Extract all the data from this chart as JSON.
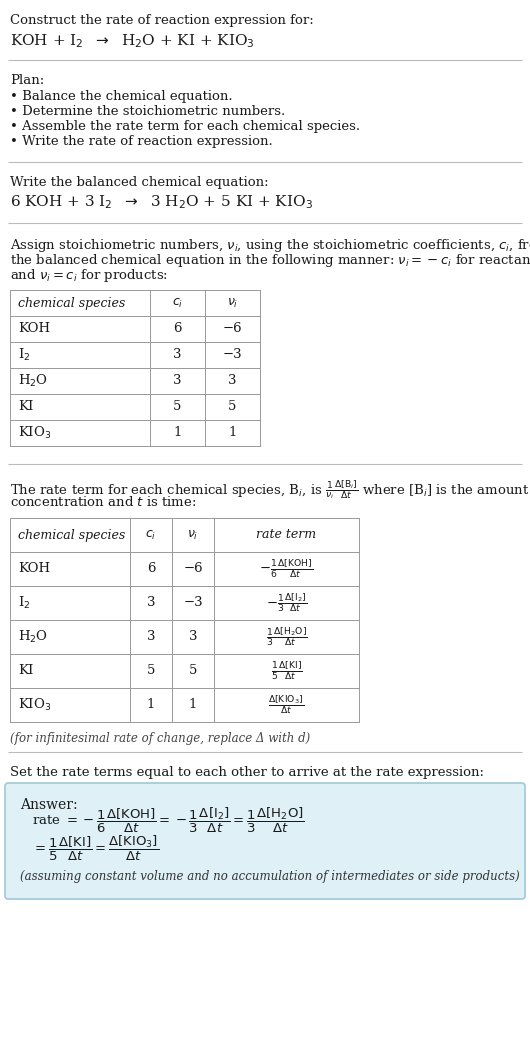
{
  "title_line1": "Construct the rate of reaction expression for:",
  "title_line2_math": "KOH + I$_2$  $\\rightarrow$  H$_2$O + KI + KIO$_3$",
  "plan_header": "Plan:",
  "plan_items": [
    "• Balance the chemical equation.",
    "• Determine the stoichiometric numbers.",
    "• Assemble the rate term for each chemical species.",
    "• Write the rate of reaction expression."
  ],
  "balanced_header": "Write the balanced chemical equation:",
  "balanced_eq_math": "6 KOH + 3 I$_2$  $\\rightarrow$  3 H$_2$O + 5 KI + KIO$_3$",
  "stoich_intro_lines": [
    "Assign stoichiometric numbers, $\\nu_i$, using the stoichiometric coefficients, $c_i$, from",
    "the balanced chemical equation in the following manner: $\\nu_i = -c_i$ for reactants",
    "and $\\nu_i = c_i$ for products:"
  ],
  "table1_rows": [
    [
      "KOH",
      "6",
      "−6"
    ],
    [
      "I$_2$",
      "3",
      "−3"
    ],
    [
      "H$_2$O",
      "3",
      "3"
    ],
    [
      "KI",
      "5",
      "5"
    ],
    [
      "KIO$_3$",
      "1",
      "1"
    ]
  ],
  "rate_intro_lines": [
    "The rate term for each chemical species, B$_i$, is $\\frac{1}{\\nu_i}\\frac{\\Delta[\\mathrm{B}_i]}{\\Delta t}$ where [B$_i$] is the amount",
    "concentration and $t$ is time:"
  ],
  "table2_rows": [
    [
      "KOH",
      "6",
      "−6",
      "$-\\frac{1}{6}\\frac{\\Delta[\\mathrm{KOH}]}{\\Delta t}$"
    ],
    [
      "I$_2$",
      "3",
      "−3",
      "$-\\frac{1}{3}\\frac{\\Delta[\\mathrm{I_2}]}{\\Delta t}$"
    ],
    [
      "H$_2$O",
      "3",
      "3",
      "$\\frac{1}{3}\\frac{\\Delta[\\mathrm{H_2O}]}{\\Delta t}$"
    ],
    [
      "KI",
      "5",
      "5",
      "$\\frac{1}{5}\\frac{\\Delta[\\mathrm{KI}]}{\\Delta t}$"
    ],
    [
      "KIO$_3$",
      "1",
      "1",
      "$\\frac{\\Delta[\\mathrm{KIO_3}]}{\\Delta t}$"
    ]
  ],
  "infinitesimal_note": "(for infinitesimal rate of change, replace Δ with d)",
  "set_equal_text": "Set the rate terms equal to each other to arrive at the rate expression:",
  "answer_label": "Answer:",
  "answer_note": "(assuming constant volume and no accumulation of intermediates or side products)",
  "bg_color": "#ffffff",
  "text_color": "#1a1a1a",
  "answer_box_bg": "#dff0f7",
  "answer_box_border": "#a0c8d8"
}
